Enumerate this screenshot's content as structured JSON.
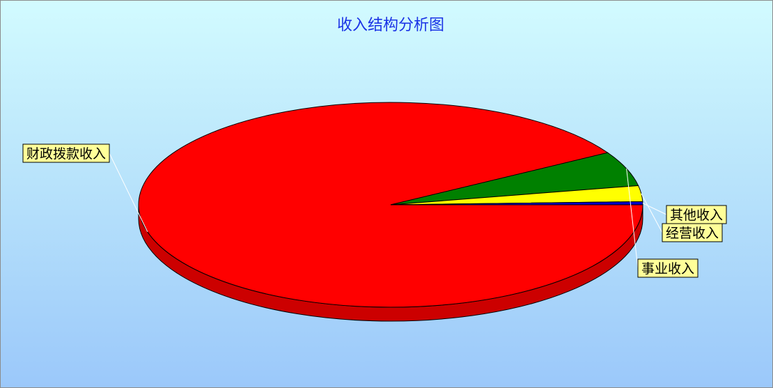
{
  "chart_data": {
    "type": "pie",
    "title": "收入结构分析图",
    "style": "3d",
    "categories": [
      "财政拨款收入",
      "事业收入",
      "经营收入",
      "其他收入"
    ],
    "values": [
      91.5,
      5.5,
      2.5,
      0.5
    ],
    "colors": [
      "#ff0000",
      "#008000",
      "#ffff00",
      "#0000cc"
    ],
    "side_colors": [
      "#cc0000",
      "#005a00",
      "#c8c800",
      "#000099"
    ],
    "label_background": "#ffff99",
    "legend": "none"
  }
}
